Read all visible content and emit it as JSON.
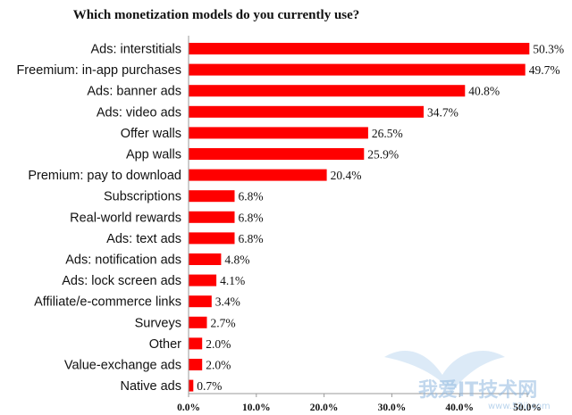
{
  "chart_data": {
    "type": "bar",
    "orientation": "horizontal",
    "title": "Which monetization models do you currently use?",
    "bar_color": "#ff0000",
    "categories": [
      "Ads: interstitials",
      "Freemium: in-app purchases",
      "Ads: banner ads",
      "Ads: video ads",
      "Offer walls",
      "App walls",
      "Premium: pay to download",
      "Subscriptions",
      "Real-world rewards",
      "Ads: text ads",
      "Ads: notification ads",
      "Ads: lock screen ads",
      "Affiliate/e-commerce links",
      "Surveys",
      "Other",
      "Value-exchange ads",
      "Native ads"
    ],
    "values": [
      50.3,
      49.7,
      40.8,
      34.7,
      26.5,
      25.9,
      20.4,
      6.8,
      6.8,
      6.8,
      4.8,
      4.1,
      3.4,
      2.7,
      2.0,
      2.0,
      0.7
    ],
    "value_labels": [
      "50.3%",
      "49.7%",
      "40.8%",
      "34.7%",
      "26.5%",
      "25.9%",
      "20.4%",
      "6.8%",
      "6.8%",
      "6.8%",
      "4.8%",
      "4.1%",
      "3.4%",
      "2.7%",
      "2.0%",
      "2.0%",
      "0.7%"
    ],
    "xlim": [
      0,
      50
    ],
    "xticks": [
      0,
      10,
      20,
      30,
      40,
      50
    ],
    "xtick_labels": [
      "0.0%",
      "10.0%",
      "20.0%",
      "30.0%",
      "40.0%",
      "50.0%"
    ],
    "grid": false,
    "legend": "none"
  },
  "watermark": {
    "text": "我爱IT技术网",
    "url": "www.52ij.com"
  }
}
